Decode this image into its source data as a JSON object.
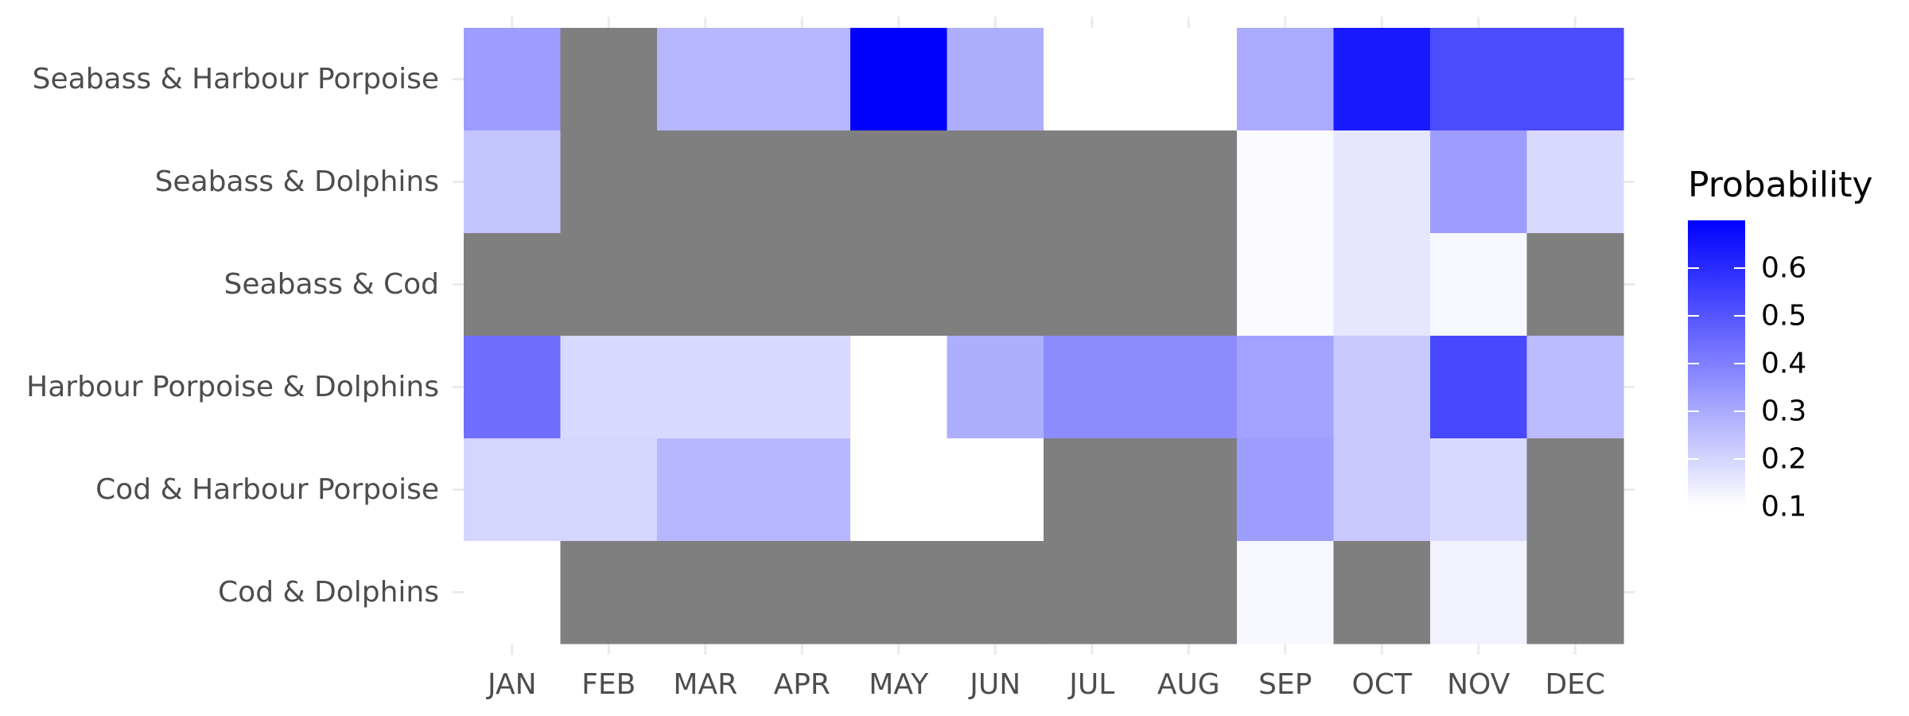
{
  "chart_data": {
    "type": "heatmap",
    "x_categories": [
      "JAN",
      "FEB",
      "MAR",
      "APR",
      "MAY",
      "JUN",
      "JUL",
      "AUG",
      "SEP",
      "OCT",
      "NOV",
      "DEC"
    ],
    "y_categories": [
      "Seabass & Harbour Porpoise",
      "Seabass & Dolphins",
      "Seabass & Cod",
      "Harbour Porpoise & Dolphins",
      "Cod & Harbour Porpoise",
      "Cod & Dolphins"
    ],
    "values": [
      [
        0.33,
        null,
        0.27,
        0.27,
        0.7,
        0.29,
        0.1,
        0.1,
        0.3,
        0.64,
        0.52,
        0.52
      ],
      [
        0.24,
        null,
        null,
        null,
        null,
        null,
        null,
        null,
        0.11,
        0.16,
        0.33,
        0.19
      ],
      [
        null,
        null,
        null,
        null,
        null,
        null,
        null,
        null,
        0.11,
        0.16,
        0.12,
        null
      ],
      [
        0.44,
        0.19,
        0.19,
        0.19,
        0.1,
        0.29,
        0.37,
        0.37,
        0.32,
        0.23,
        0.53,
        0.26
      ],
      [
        0.2,
        0.2,
        0.27,
        0.27,
        0.1,
        0.1,
        null,
        null,
        0.33,
        0.23,
        0.19,
        null
      ],
      [
        0.1,
        null,
        null,
        null,
        null,
        null,
        null,
        null,
        0.12,
        null,
        0.13,
        null
      ]
    ],
    "na_color": "#7f7f7f",
    "color_low": "#ffffff",
    "color_high": "#0000ff",
    "value_range": [
      0.1,
      0.7
    ],
    "legend": {
      "title": "Probability",
      "ticks": [
        0.6,
        0.5,
        0.4,
        0.3,
        0.2,
        0.1
      ],
      "tick_labels": [
        "0.6",
        "0.5",
        "0.4",
        "0.3",
        "0.2",
        "0.1"
      ],
      "position": "right"
    },
    "grid": true
  }
}
